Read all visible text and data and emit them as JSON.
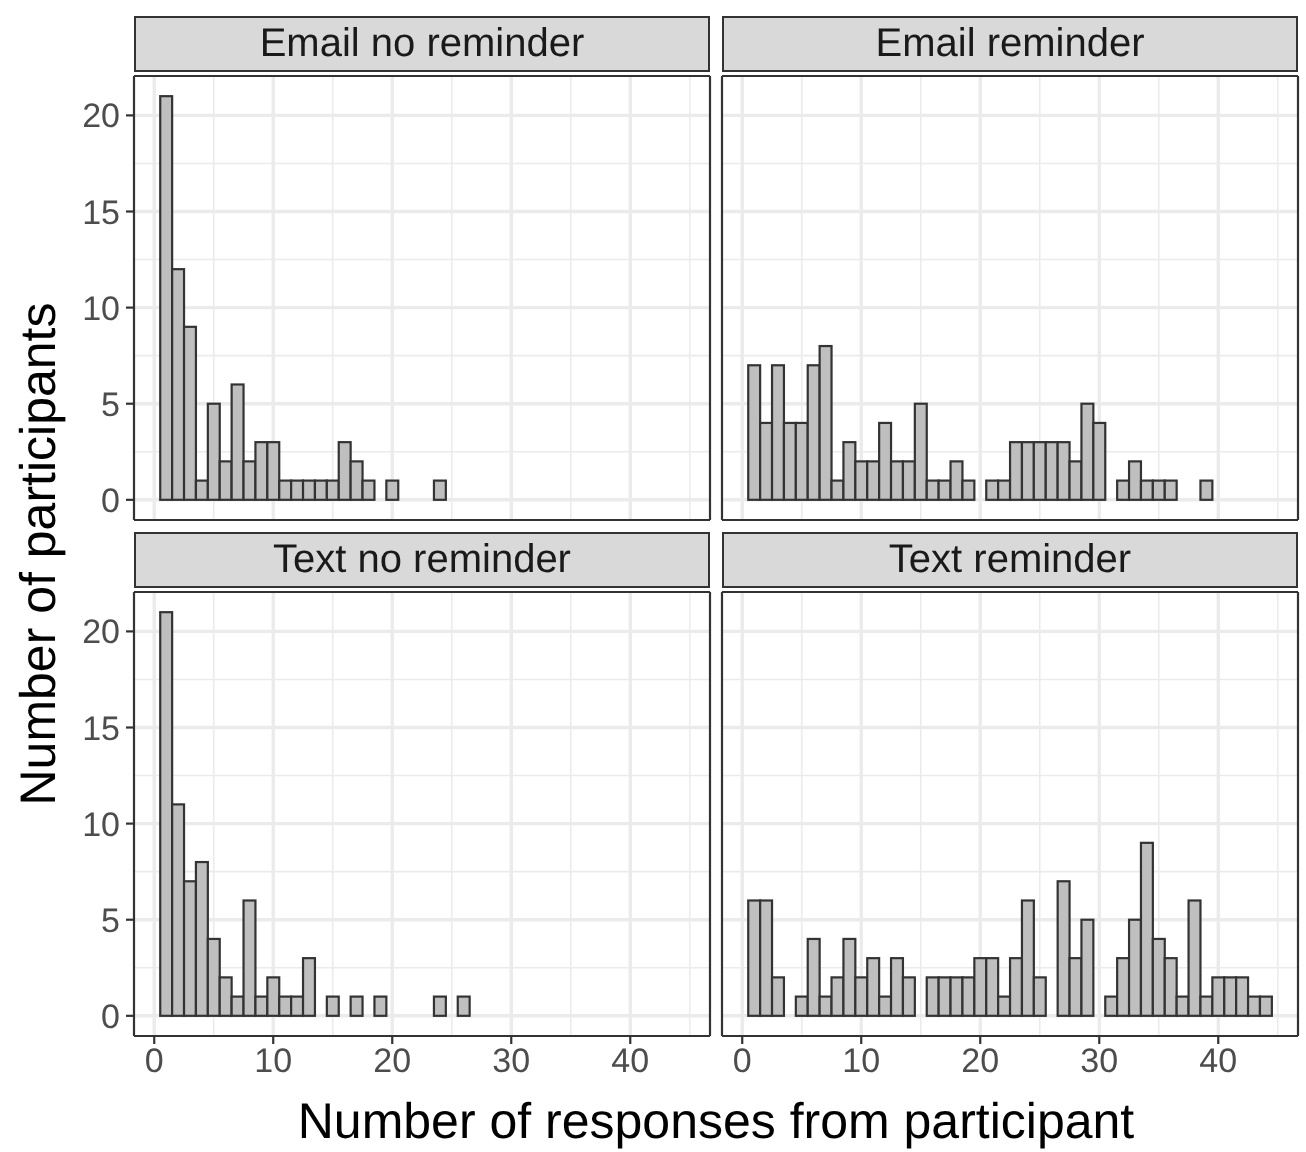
{
  "chart_data": [
    {
      "type": "histogram",
      "title": "Email no reminder",
      "bins": [
        0.5,
        1.5,
        2.5,
        3.5,
        4.5,
        5.5,
        6.5,
        7.5,
        8.5,
        9.5,
        10.5,
        11.5,
        12.5,
        13.5,
        14.5,
        15.5,
        16.5,
        17.5,
        18.5,
        19.5,
        20.5,
        21.5,
        22.5,
        23.5,
        24.5,
        25.5,
        26.5,
        27.5,
        28.5,
        29.5,
        30.5,
        31.5,
        32.5,
        33.5,
        34.5,
        35.5,
        36.5,
        37.5,
        38.5,
        39.5,
        40.5,
        41.5,
        42.5,
        43.5,
        44.5
      ],
      "values": [
        21,
        12,
        9,
        1,
        5,
        2,
        6,
        2,
        3,
        3,
        1,
        1,
        1,
        1,
        1,
        3,
        2,
        1,
        0,
        1,
        0,
        0,
        0,
        1,
        0,
        0,
        0,
        0,
        0,
        0,
        0,
        0,
        0,
        0,
        0,
        0,
        0,
        0,
        0,
        0,
        0,
        0,
        0,
        0
      ],
      "color": "#bfbfbf",
      "xlim": [
        -1.7,
        46.7
      ],
      "xticks": [
        0,
        10,
        20,
        30,
        40
      ],
      "ylim": [
        -1.05,
        22.05
      ],
      "yticks": [
        0,
        5,
        10,
        15,
        20
      ],
      "grid": true,
      "tick_labels": "y"
    },
    {
      "type": "histogram",
      "title": "Email reminder",
      "bins": [
        0.5,
        1.5,
        2.5,
        3.5,
        4.5,
        5.5,
        6.5,
        7.5,
        8.5,
        9.5,
        10.5,
        11.5,
        12.5,
        13.5,
        14.5,
        15.5,
        16.5,
        17.5,
        18.5,
        19.5,
        20.5,
        21.5,
        22.5,
        23.5,
        24.5,
        25.5,
        26.5,
        27.5,
        28.5,
        29.5,
        30.5,
        31.5,
        32.5,
        33.5,
        34.5,
        35.5,
        36.5,
        37.5,
        38.5,
        39.5,
        40.5,
        41.5,
        42.5,
        43.5,
        44.5
      ],
      "values": [
        7,
        4,
        7,
        4,
        4,
        7,
        8,
        1,
        3,
        2,
        2,
        4,
        2,
        2,
        5,
        1,
        1,
        2,
        1,
        0,
        1,
        1,
        3,
        3,
        3,
        3,
        3,
        2,
        5,
        4,
        0,
        1,
        2,
        1,
        1,
        1,
        0,
        0,
        1,
        0,
        0,
        0,
        0,
        0
      ],
      "color": "#bfbfbf",
      "xlim": [
        -1.7,
        46.7
      ],
      "xticks": [
        0,
        10,
        20,
        30,
        40
      ],
      "ylim": [
        -1.05,
        22.05
      ],
      "yticks": [
        0,
        5,
        10,
        15,
        20
      ],
      "grid": true,
      "tick_labels": false
    },
    {
      "type": "histogram",
      "title": "Text no reminder",
      "xlabel": "Number of responses from participant",
      "ylabel": "Number of participants",
      "bins": [
        0.5,
        1.5,
        2.5,
        3.5,
        4.5,
        5.5,
        6.5,
        7.5,
        8.5,
        9.5,
        10.5,
        11.5,
        12.5,
        13.5,
        14.5,
        15.5,
        16.5,
        17.5,
        18.5,
        19.5,
        20.5,
        21.5,
        22.5,
        23.5,
        24.5,
        25.5,
        26.5,
        27.5,
        28.5,
        29.5,
        30.5,
        31.5,
        32.5,
        33.5,
        34.5,
        35.5,
        36.5,
        37.5,
        38.5,
        39.5,
        40.5,
        41.5,
        42.5,
        43.5,
        44.5
      ],
      "values": [
        21,
        11,
        7,
        8,
        4,
        2,
        1,
        6,
        1,
        2,
        1,
        1,
        3,
        0,
        1,
        0,
        1,
        0,
        1,
        0,
        0,
        0,
        0,
        1,
        0,
        1,
        0,
        0,
        0,
        0,
        0,
        0,
        0,
        0,
        0,
        0,
        0,
        0,
        0,
        0,
        0,
        0,
        0,
        0
      ],
      "color": "#bfbfbf",
      "xlim": [
        -1.7,
        46.7
      ],
      "xticks": [
        0,
        10,
        20,
        30,
        40
      ],
      "ylim": [
        -1.05,
        22.05
      ],
      "yticks": [
        0,
        5,
        10,
        15,
        20
      ],
      "grid": true
    },
    {
      "type": "histogram",
      "title": "Text reminder",
      "bins": [
        0.5,
        1.5,
        2.5,
        3.5,
        4.5,
        5.5,
        6.5,
        7.5,
        8.5,
        9.5,
        10.5,
        11.5,
        12.5,
        13.5,
        14.5,
        15.5,
        16.5,
        17.5,
        18.5,
        19.5,
        20.5,
        21.5,
        22.5,
        23.5,
        24.5,
        25.5,
        26.5,
        27.5,
        28.5,
        29.5,
        30.5,
        31.5,
        32.5,
        33.5,
        34.5,
        35.5,
        36.5,
        37.5,
        38.5,
        39.5,
        40.5,
        41.5,
        42.5,
        43.5,
        44.5
      ],
      "values": [
        6,
        6,
        2,
        0,
        1,
        4,
        1,
        2,
        4,
        2,
        3,
        1,
        3,
        2,
        0,
        2,
        2,
        2,
        2,
        3,
        3,
        1,
        3,
        6,
        2,
        0,
        7,
        3,
        5,
        0,
        1,
        3,
        5,
        9,
        4,
        3,
        1,
        6,
        1,
        2,
        2,
        2,
        1,
        1
      ],
      "color": "#bfbfbf",
      "xlim": [
        -1.7,
        46.7
      ],
      "xticks": [
        0,
        10,
        20,
        30,
        40
      ],
      "ylim": [
        -1.05,
        22.05
      ],
      "yticks": [
        0,
        5,
        10,
        15,
        20
      ],
      "grid": true,
      "tick_labels": "x"
    }
  ]
}
